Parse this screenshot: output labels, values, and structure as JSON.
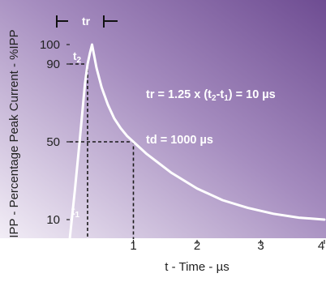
{
  "chart_data": {
    "type": "line",
    "xlabel": "t - Time - µs",
    "ylabel": "IPP - Percentage Peak Current - %IPP",
    "xlim": [
      0,
      4
    ],
    "ylim": [
      0,
      100
    ],
    "x_ticks": [
      "1",
      "2",
      "3",
      "4"
    ],
    "y_ticks": [
      {
        "value": 100,
        "label": "100"
      },
      {
        "value": 90,
        "label": "90"
      },
      {
        "value": 50,
        "label": "50"
      },
      {
        "value": 10,
        "label": "10"
      }
    ],
    "series": [
      {
        "x": [
          0,
          0.08,
          0.16,
          0.24,
          0.28,
          0.32,
          0.35,
          0.42,
          0.5,
          0.6,
          0.7,
          0.8,
          0.9,
          1.0,
          1.2,
          1.4,
          1.6,
          1.8,
          2.0,
          2.4,
          2.8,
          3.2,
          3.6,
          4.0
        ],
        "y": [
          0,
          25,
          52,
          80,
          90,
          96,
          100,
          88,
          78,
          69,
          62,
          57,
          53,
          50,
          44,
          39,
          34,
          30,
          26,
          20,
          16,
          13,
          11,
          10
        ]
      }
    ],
    "points": {
      "t1": {
        "x": 0.01,
        "y": 10,
        "label": "t1",
        "label_main": "t",
        "label_sub": "1"
      },
      "t2": {
        "x": 0.28,
        "y": 90,
        "label": "t2",
        "label_main": "t",
        "label_sub": "2"
      }
    },
    "td_point": {
      "x": 1.0,
      "y": 50
    },
    "annotations": {
      "tr_equation": "tr = 1.25 x (t2-t1) = 10 µs",
      "tr_equation_parts": {
        "a": "tr = 1.25 x (t",
        "s2": "2",
        "b": "-t",
        "s1": "1",
        "c": ") = 10 µs"
      },
      "td_equation": "td = 1000 µs",
      "tr_marker": "tr"
    },
    "grid": false,
    "legend": "none",
    "colors": {
      "bg_dark": "#7a5a9a",
      "bg_light": "#efe9f4",
      "curve": "#ffffff",
      "guides": "#1a1a1a"
    }
  }
}
